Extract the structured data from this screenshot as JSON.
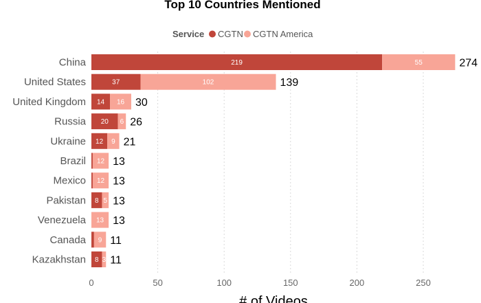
{
  "chart_data": {
    "type": "bar",
    "orientation": "horizontal",
    "stacked": true,
    "title": "Top 10 Countries Mentioned",
    "legend": {
      "title": "Service",
      "position": "top",
      "entries": [
        "CGTN",
        "CGTN America"
      ]
    },
    "categories": [
      "China",
      "United States",
      "United Kingdom",
      "Russia",
      "Ukraine",
      "Brazil",
      "Mexico",
      "Pakistan",
      "Venezuela",
      "Canada",
      "Kazakhstan"
    ],
    "series": [
      {
        "name": "CGTN",
        "color": "#c0463a",
        "values": [
          219,
          37,
          14,
          20,
          12,
          1,
          1,
          8,
          0,
          2,
          8
        ],
        "labels": [
          "219",
          "37",
          "14",
          "20",
          "12",
          "",
          "",
          "8",
          "",
          "",
          "8"
        ]
      },
      {
        "name": "CGTN America",
        "color": "#f8a597",
        "values": [
          55,
          102,
          16,
          6,
          9,
          12,
          12,
          5,
          13,
          9,
          3
        ],
        "labels": [
          "55",
          "102",
          "16",
          "6",
          "9",
          "12",
          "12",
          "5",
          "13",
          "9",
          "3"
        ]
      }
    ],
    "totals": [
      274,
      139,
      30,
      26,
      21,
      13,
      13,
      13,
      13,
      11,
      11
    ],
    "xlabel": "# of Videos",
    "ylabel": "",
    "xlim": [
      0,
      275
    ],
    "xticks": [
      0,
      50,
      100,
      150,
      200,
      250
    ],
    "grid": true
  }
}
